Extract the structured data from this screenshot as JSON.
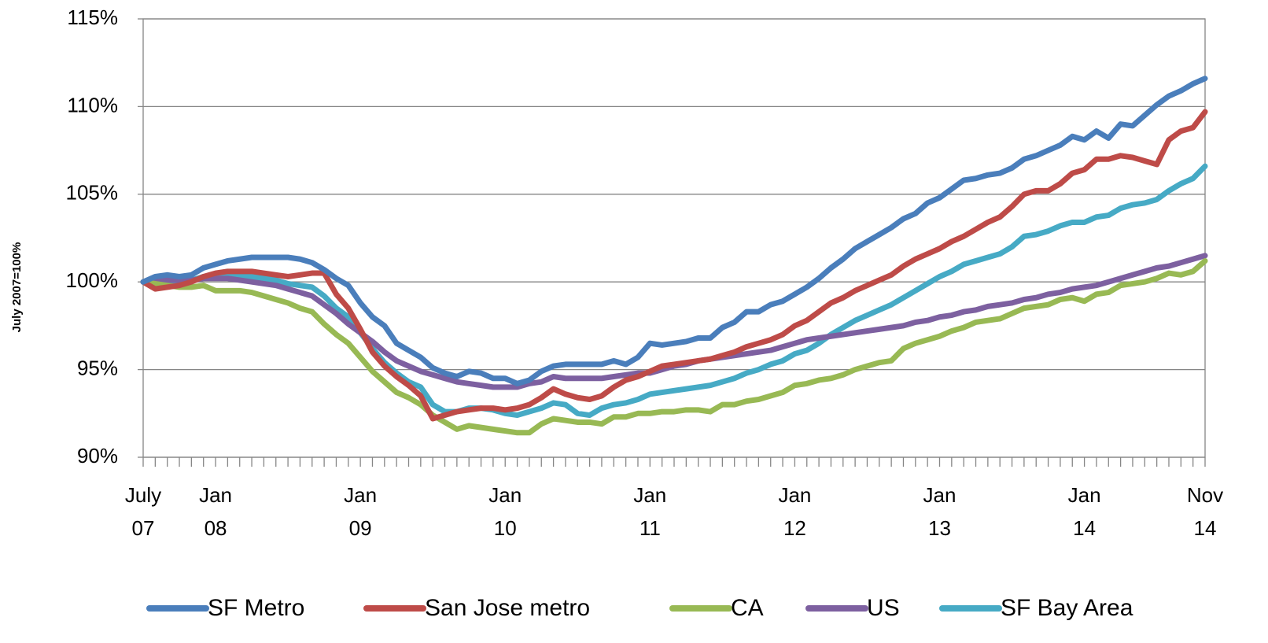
{
  "chart_data": {
    "type": "line",
    "y_label": "July 2007=100%",
    "categories": [
      "July 07",
      null,
      null,
      null,
      null,
      null,
      "Jan 08",
      null,
      null,
      null,
      null,
      null,
      null,
      null,
      null,
      null,
      null,
      null,
      "Jan 09",
      null,
      null,
      null,
      null,
      null,
      null,
      null,
      null,
      null,
      null,
      null,
      "Jan 10",
      null,
      null,
      null,
      null,
      null,
      null,
      null,
      null,
      null,
      null,
      null,
      "Jan 11",
      null,
      null,
      null,
      null,
      null,
      null,
      null,
      null,
      null,
      null,
      null,
      "Jan 12",
      null,
      null,
      null,
      null,
      null,
      null,
      null,
      null,
      null,
      null,
      null,
      "Jan 13",
      null,
      null,
      null,
      null,
      null,
      null,
      null,
      null,
      null,
      null,
      null,
      "Jan 14",
      null,
      null,
      null,
      null,
      null,
      null,
      null,
      null,
      null,
      "Nov 14"
    ],
    "ylim": [
      90,
      115
    ],
    "yticks": [
      {
        "value": 90,
        "label": "90%"
      },
      {
        "value": 95,
        "label": "95%"
      },
      {
        "value": 100,
        "label": "100%"
      },
      {
        "value": 105,
        "label": "105%"
      },
      {
        "value": 110,
        "label": "110%"
      },
      {
        "value": 115,
        "label": "115%"
      }
    ],
    "grid": true,
    "legend": "bottom",
    "series": [
      {
        "name": "SF Metro",
        "color": "#4a7ebb",
        "values": [
          100,
          100.3,
          100.4,
          100.3,
          100.4,
          100.8,
          101.0,
          101.2,
          101.3,
          101.4,
          101.4,
          101.4,
          101.4,
          101.3,
          101.1,
          100.7,
          100.2,
          99.8,
          98.8,
          98.0,
          97.5,
          96.5,
          96.1,
          95.7,
          95.1,
          94.8,
          94.6,
          94.9,
          94.8,
          94.5,
          94.5,
          94.2,
          94.4,
          94.9,
          95.2,
          95.3,
          95.3,
          95.3,
          95.3,
          95.5,
          95.3,
          95.7,
          96.5,
          96.4,
          96.5,
          96.6,
          96.8,
          96.8,
          97.4,
          97.7,
          98.3,
          98.3,
          98.7,
          98.9,
          99.3,
          99.7,
          100.2,
          100.8,
          101.3,
          101.9,
          102.3,
          102.7,
          103.1,
          103.6,
          103.9,
          104.5,
          104.8,
          105.3,
          105.8,
          105.9,
          106.1,
          106.2,
          106.5,
          107.0,
          107.2,
          107.5,
          107.8,
          108.3,
          108.1,
          108.6,
          108.2,
          109.0,
          108.9,
          109.5,
          110.1,
          110.6,
          110.9,
          111.3,
          111.6
        ]
      },
      {
        "name": "San Jose metro",
        "color": "#be4b48",
        "values": [
          100,
          99.6,
          99.7,
          99.8,
          100.0,
          100.3,
          100.5,
          100.6,
          100.6,
          100.6,
          100.5,
          100.4,
          100.3,
          100.4,
          100.5,
          100.5,
          99.3,
          98.5,
          97.3,
          96.0,
          95.2,
          94.6,
          94.1,
          93.5,
          92.2,
          92.4,
          92.6,
          92.7,
          92.8,
          92.8,
          92.7,
          92.8,
          93.0,
          93.4,
          93.9,
          93.6,
          93.4,
          93.3,
          93.5,
          94.0,
          94.4,
          94.6,
          94.9,
          95.2,
          95.3,
          95.4,
          95.5,
          95.6,
          95.8,
          96.0,
          96.3,
          96.5,
          96.7,
          97.0,
          97.5,
          97.8,
          98.3,
          98.8,
          99.1,
          99.5,
          99.8,
          100.1,
          100.4,
          100.9,
          101.3,
          101.6,
          101.9,
          102.3,
          102.6,
          103.0,
          103.4,
          103.7,
          104.3,
          105.0,
          105.2,
          105.2,
          105.6,
          106.2,
          106.4,
          107.0,
          107.0,
          107.2,
          107.1,
          106.9,
          106.7,
          108.1,
          108.6,
          108.8,
          109.7
        ]
      },
      {
        "name": "CA",
        "color": "#98b954",
        "values": [
          100,
          99.9,
          99.8,
          99.7,
          99.7,
          99.8,
          99.5,
          99.5,
          99.5,
          99.4,
          99.2,
          99.0,
          98.8,
          98.5,
          98.3,
          97.6,
          97.0,
          96.5,
          95.7,
          94.9,
          94.3,
          93.7,
          93.4,
          93.0,
          92.4,
          92.0,
          91.6,
          91.8,
          91.7,
          91.6,
          91.5,
          91.4,
          91.4,
          91.9,
          92.2,
          92.1,
          92.0,
          92.0,
          91.9,
          92.3,
          92.3,
          92.5,
          92.5,
          92.6,
          92.6,
          92.7,
          92.7,
          92.6,
          93.0,
          93.0,
          93.2,
          93.3,
          93.5,
          93.7,
          94.1,
          94.2,
          94.4,
          94.5,
          94.7,
          95.0,
          95.2,
          95.4,
          95.5,
          96.2,
          96.5,
          96.7,
          96.9,
          97.2,
          97.4,
          97.7,
          97.8,
          97.9,
          98.2,
          98.5,
          98.6,
          98.7,
          99.0,
          99.1,
          98.9,
          99.3,
          99.4,
          99.8,
          99.9,
          100.0,
          100.2,
          100.5,
          100.4,
          100.6,
          101.2
        ]
      },
      {
        "name": "US",
        "color": "#7d60a0",
        "values": [
          100,
          100.0,
          100.1,
          100.1,
          100.1,
          100.2,
          100.2,
          100.2,
          100.1,
          100.0,
          99.9,
          99.8,
          99.6,
          99.4,
          99.2,
          98.7,
          98.2,
          97.6,
          97.1,
          96.6,
          96.0,
          95.5,
          95.2,
          94.9,
          94.7,
          94.5,
          94.3,
          94.2,
          94.1,
          94.0,
          94.0,
          94.0,
          94.2,
          94.3,
          94.6,
          94.5,
          94.5,
          94.5,
          94.5,
          94.6,
          94.7,
          94.8,
          94.8,
          95.0,
          95.2,
          95.3,
          95.5,
          95.6,
          95.7,
          95.8,
          95.9,
          96.0,
          96.1,
          96.3,
          96.5,
          96.7,
          96.8,
          96.9,
          97.0,
          97.1,
          97.2,
          97.3,
          97.4,
          97.5,
          97.7,
          97.8,
          98.0,
          98.1,
          98.3,
          98.4,
          98.6,
          98.7,
          98.8,
          99.0,
          99.1,
          99.3,
          99.4,
          99.6,
          99.7,
          99.8,
          100.0,
          100.2,
          100.4,
          100.6,
          100.8,
          100.9,
          101.1,
          101.3,
          101.5
        ]
      },
      {
        "name": "SF Bay Area",
        "color": "#46aac5",
        "values": [
          100,
          100.0,
          100.0,
          100.0,
          100.1,
          100.3,
          100.4,
          100.5,
          100.4,
          100.3,
          100.2,
          100.1,
          99.9,
          99.8,
          99.7,
          99.2,
          98.5,
          98.0,
          97.1,
          96.2,
          95.4,
          94.8,
          94.3,
          94.0,
          93.0,
          92.6,
          92.6,
          92.8,
          92.8,
          92.7,
          92.5,
          92.4,
          92.6,
          92.8,
          93.1,
          93.0,
          92.5,
          92.4,
          92.8,
          93.0,
          93.1,
          93.3,
          93.6,
          93.7,
          93.8,
          93.9,
          94.0,
          94.1,
          94.3,
          94.5,
          94.8,
          95.0,
          95.3,
          95.5,
          95.9,
          96.1,
          96.5,
          97.0,
          97.4,
          97.8,
          98.1,
          98.4,
          98.7,
          99.1,
          99.5,
          99.9,
          100.3,
          100.6,
          101.0,
          101.2,
          101.4,
          101.6,
          102.0,
          102.6,
          102.7,
          102.9,
          103.2,
          103.4,
          103.4,
          103.7,
          103.8,
          104.2,
          104.4,
          104.5,
          104.7,
          105.2,
          105.6,
          105.9,
          106.6
        ]
      }
    ]
  }
}
